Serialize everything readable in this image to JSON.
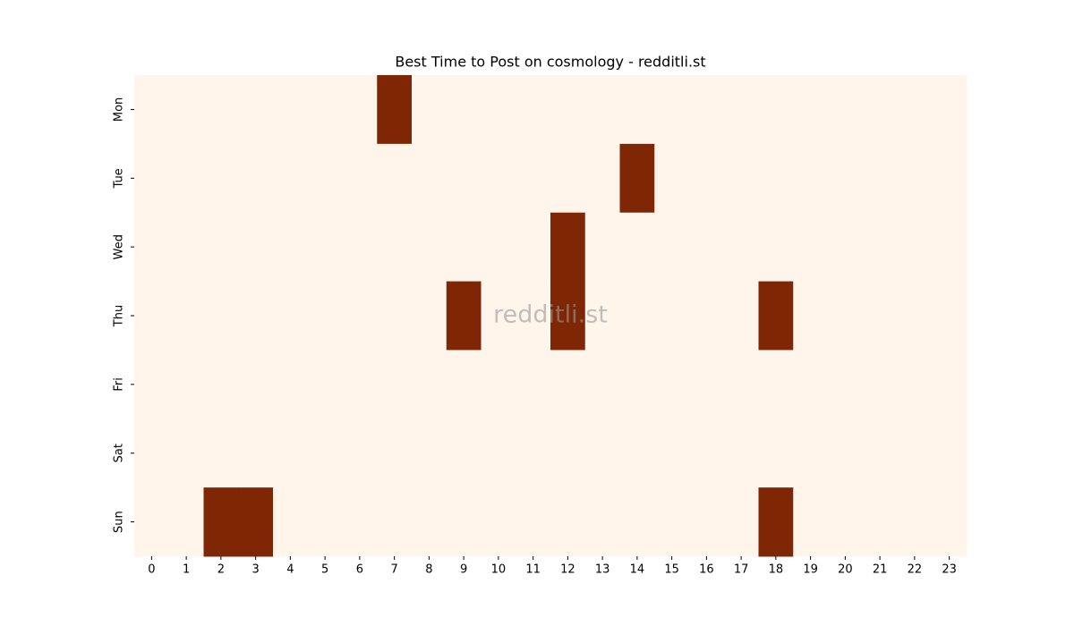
{
  "chart_data": {
    "type": "heatmap",
    "title": "Best Time to Post on cosmology - redditli.st",
    "watermark": "redditli.st",
    "x": [
      0,
      1,
      2,
      3,
      4,
      5,
      6,
      7,
      8,
      9,
      10,
      11,
      12,
      13,
      14,
      15,
      16,
      17,
      18,
      19,
      20,
      21,
      22,
      23
    ],
    "y": [
      "Mon",
      "Tue",
      "Wed",
      "Thu",
      "Fri",
      "Sat",
      "Sun"
    ],
    "values": [
      [
        0,
        0,
        0,
        0,
        0,
        0,
        0,
        1,
        0,
        0,
        0,
        0,
        0,
        0,
        0,
        0,
        0,
        0,
        0,
        0,
        0,
        0,
        0,
        0
      ],
      [
        0,
        0,
        0,
        0,
        0,
        0,
        0,
        0,
        0,
        0,
        0,
        0,
        0,
        0,
        1,
        0,
        0,
        0,
        0,
        0,
        0,
        0,
        0,
        0
      ],
      [
        0,
        0,
        0,
        0,
        0,
        0,
        0,
        0,
        0,
        0,
        0,
        0,
        1,
        0,
        0,
        0,
        0,
        0,
        0,
        0,
        0,
        0,
        0,
        0
      ],
      [
        0,
        0,
        0,
        0,
        0,
        0,
        0,
        0,
        0,
        1,
        0,
        0,
        1,
        0,
        0,
        0,
        0,
        0,
        1,
        0,
        0,
        0,
        0,
        0
      ],
      [
        0,
        0,
        0,
        0,
        0,
        0,
        0,
        0,
        0,
        0,
        0,
        0,
        0,
        0,
        0,
        0,
        0,
        0,
        0,
        0,
        0,
        0,
        0,
        0
      ],
      [
        0,
        0,
        0,
        0,
        0,
        0,
        0,
        0,
        0,
        0,
        0,
        0,
        0,
        0,
        0,
        0,
        0,
        0,
        0,
        0,
        0,
        0,
        0,
        0
      ],
      [
        0,
        0,
        1,
        1,
        0,
        0,
        0,
        0,
        0,
        0,
        0,
        0,
        0,
        0,
        0,
        0,
        0,
        0,
        1,
        0,
        0,
        0,
        0,
        0
      ]
    ],
    "colors": [
      "#fff5eb",
      "#7f2704"
    ]
  }
}
